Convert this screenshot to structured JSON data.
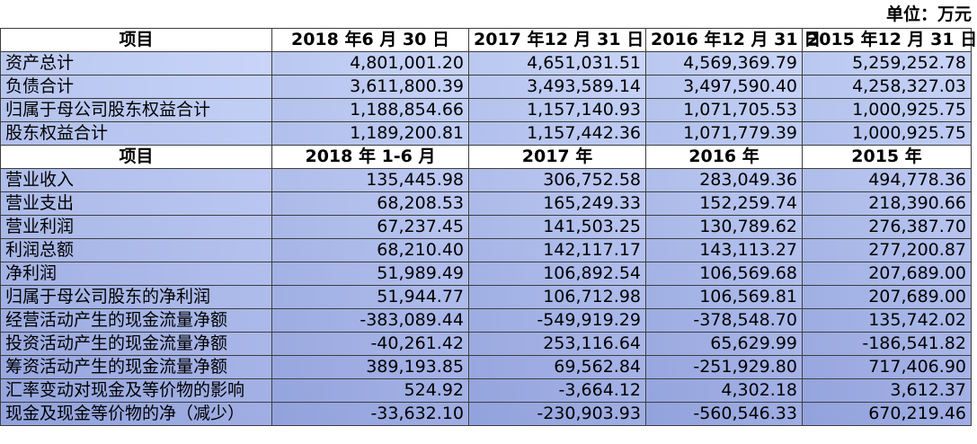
{
  "unit_label": "单位：万元",
  "balance": {
    "headers": [
      "项目",
      "2018 年6 月 30 日",
      "2017 年12 月 31 日",
      "2016 年12 月 31 日",
      "2015 年12 月 31 日"
    ],
    "rows": [
      {
        "label": "资产总计",
        "values": [
          "4,801,001.20",
          "4,651,031.51",
          "4,569,369.79",
          "5,259,252.78"
        ]
      },
      {
        "label": "负债合计",
        "values": [
          "3,611,800.39",
          "3,493,589.14",
          "3,497,590.40",
          "4,258,327.03"
        ]
      },
      {
        "label": "归属于母公司股东权益合计",
        "values": [
          "1,188,854.66",
          "1,157,140.93",
          "1,071,705.53",
          "1,000,925.75"
        ]
      },
      {
        "label": "股东权益合计",
        "values": [
          "1,189,200.81",
          "1,157,442.36",
          "1,071,779.39",
          "1,000,925.75"
        ]
      }
    ]
  },
  "income": {
    "headers": [
      "项目",
      "2018 年 1-6 月",
      "2017 年",
      "2016 年",
      "2015 年"
    ],
    "rows": [
      {
        "label": "营业收入",
        "values": [
          "135,445.98",
          "306,752.58",
          "283,049.36",
          "494,778.36"
        ]
      },
      {
        "label": "营业支出",
        "values": [
          "68,208.53",
          "165,249.33",
          "152,259.74",
          "218,390.66"
        ]
      },
      {
        "label": "营业利润",
        "values": [
          "67,237.45",
          "141,503.25",
          "130,789.62",
          "276,387.70"
        ]
      },
      {
        "label": "利润总额",
        "values": [
          "68,210.40",
          "142,117.17",
          "143,113.27",
          "277,200.87"
        ]
      },
      {
        "label": "净利润",
        "values": [
          "51,989.49",
          "106,892.54",
          "106,569.68",
          "207,689.00"
        ]
      },
      {
        "label": "归属于母公司股东的净利润",
        "values": [
          "51,944.77",
          "106,712.98",
          "106,569.81",
          "207,689.00"
        ]
      },
      {
        "label": "经营活动产生的现金流量净额",
        "values": [
          "-383,089.44",
          "-549,919.29",
          "-378,548.70",
          "135,742.02"
        ]
      },
      {
        "label": "投资活动产生的现金流量净额",
        "values": [
          "-40,261.42",
          "253,116.64",
          "65,629.99",
          "-186,541.82"
        ]
      },
      {
        "label": "筹资活动产生的现金流量净额",
        "values": [
          "389,193.85",
          "69,562.84",
          "-251,929.80",
          "717,406.90"
        ]
      },
      {
        "label": "汇率变动对现金及等价物的影响",
        "values": [
          "524.92",
          "-3,664.12",
          "4,302.18",
          "3,612.37"
        ]
      },
      {
        "label": "现金及现金等价物的净（减少）",
        "values": [
          "-33,632.10",
          "-230,903.93",
          "-560,546.33",
          "670,219.46"
        ]
      }
    ]
  }
}
